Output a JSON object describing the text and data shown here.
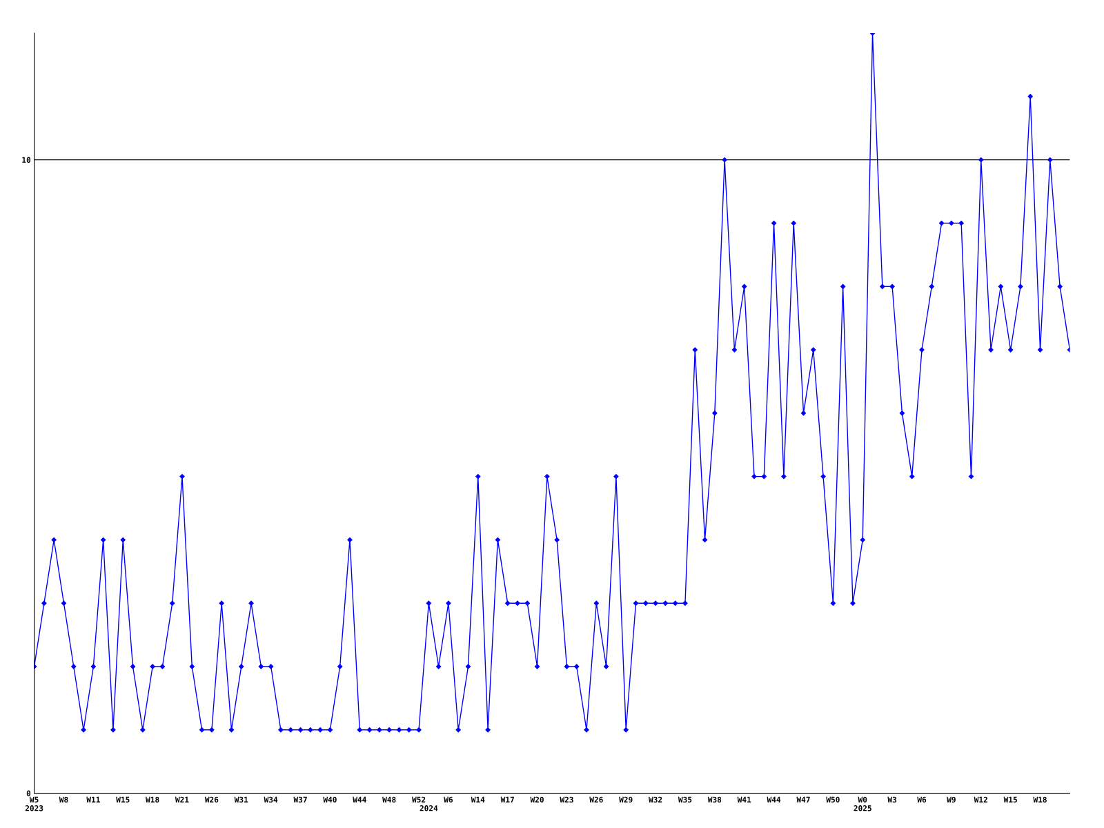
{
  "chart_data": {
    "type": "line",
    "categories": [
      "W5\n2023",
      null,
      null,
      "W8",
      null,
      null,
      "W11",
      null,
      null,
      "W15",
      null,
      null,
      "W18",
      null,
      null,
      "W21",
      null,
      null,
      "W26",
      null,
      null,
      "W31",
      null,
      null,
      "W34",
      null,
      null,
      "W37",
      null,
      null,
      "W40",
      null,
      null,
      "W44",
      null,
      null,
      "W48",
      null,
      null,
      "W52",
      "\n2024",
      null,
      "W6",
      null,
      null,
      "W14",
      null,
      null,
      "W17",
      null,
      null,
      "W20",
      null,
      null,
      "W23",
      null,
      null,
      "W26",
      null,
      null,
      "W29",
      null,
      null,
      "W32",
      null,
      null,
      "W35",
      null,
      null,
      "W38",
      null,
      null,
      "W41",
      null,
      null,
      "W44",
      null,
      null,
      "W47",
      null,
      null,
      "W50",
      null,
      null,
      "W0\n2025",
      null,
      null,
      "W3",
      null,
      null,
      "W6",
      null,
      null,
      "W9",
      null,
      null,
      "W12",
      null,
      null,
      "W15",
      null,
      null,
      "W18",
      null,
      null,
      null
    ],
    "series": [
      {
        "color": "#0000ff",
        "values": [
          2,
          3,
          4,
          3,
          2,
          1,
          2,
          4,
          1,
          4,
          2,
          1,
          2,
          2,
          3,
          5,
          2,
          1,
          1,
          3,
          1,
          2,
          3,
          2,
          2,
          1,
          1,
          1,
          1,
          1,
          1,
          2,
          4,
          1,
          1,
          1,
          1,
          1,
          1,
          1,
          3,
          2,
          3,
          1,
          2,
          5,
          1,
          4,
          3,
          3,
          3,
          2,
          5,
          4,
          2,
          2,
          1,
          3,
          2,
          5,
          1,
          3,
          3,
          3,
          3,
          3,
          3,
          7,
          4,
          6,
          10,
          7,
          8,
          5,
          5,
          9,
          5,
          9,
          6,
          7,
          5,
          3,
          8,
          3,
          4,
          12,
          8,
          8,
          6,
          5,
          7,
          8,
          9,
          9,
          9,
          5,
          10,
          7,
          8,
          7,
          8,
          11,
          7,
          10,
          8,
          7
        ]
      }
    ],
    "ylim": [
      0,
      12
    ],
    "yticks": [
      0,
      10
    ],
    "grid": "y",
    "marker": "diamond",
    "line_style": "solid",
    "legend": false
  }
}
